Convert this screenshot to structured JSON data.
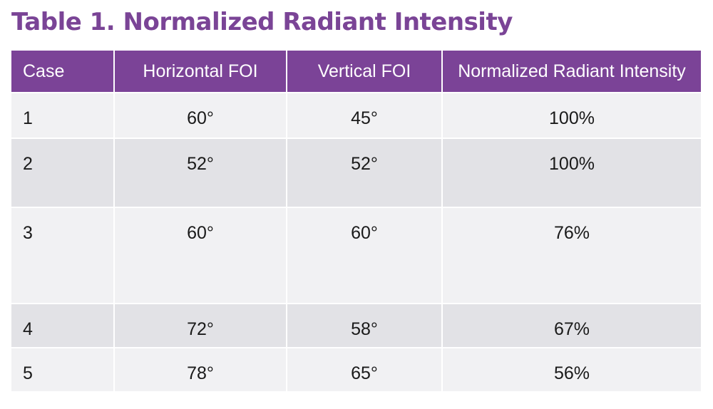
{
  "title": "Table 1. Normalized Radiant Intensity",
  "table": {
    "headers": [
      "Case",
      "Horizontal FOI",
      "Vertical FOI",
      "Normalized Radiant Intensity"
    ],
    "rows": [
      [
        "1",
        "60°",
        "45°",
        "100%"
      ],
      [
        "2",
        "52°",
        "52°",
        "100%"
      ],
      [
        "3",
        "60°",
        "60°",
        "76%"
      ],
      [
        "4",
        "72°",
        "58°",
        "67%"
      ],
      [
        "5",
        "78°",
        "65°",
        "56%"
      ]
    ]
  },
  "colors": {
    "title": "#7a4496",
    "header_background": "#7b4397",
    "header_text": "#ffffff",
    "row_light": "#f1f1f3",
    "row_dark": "#e2e2e6"
  }
}
